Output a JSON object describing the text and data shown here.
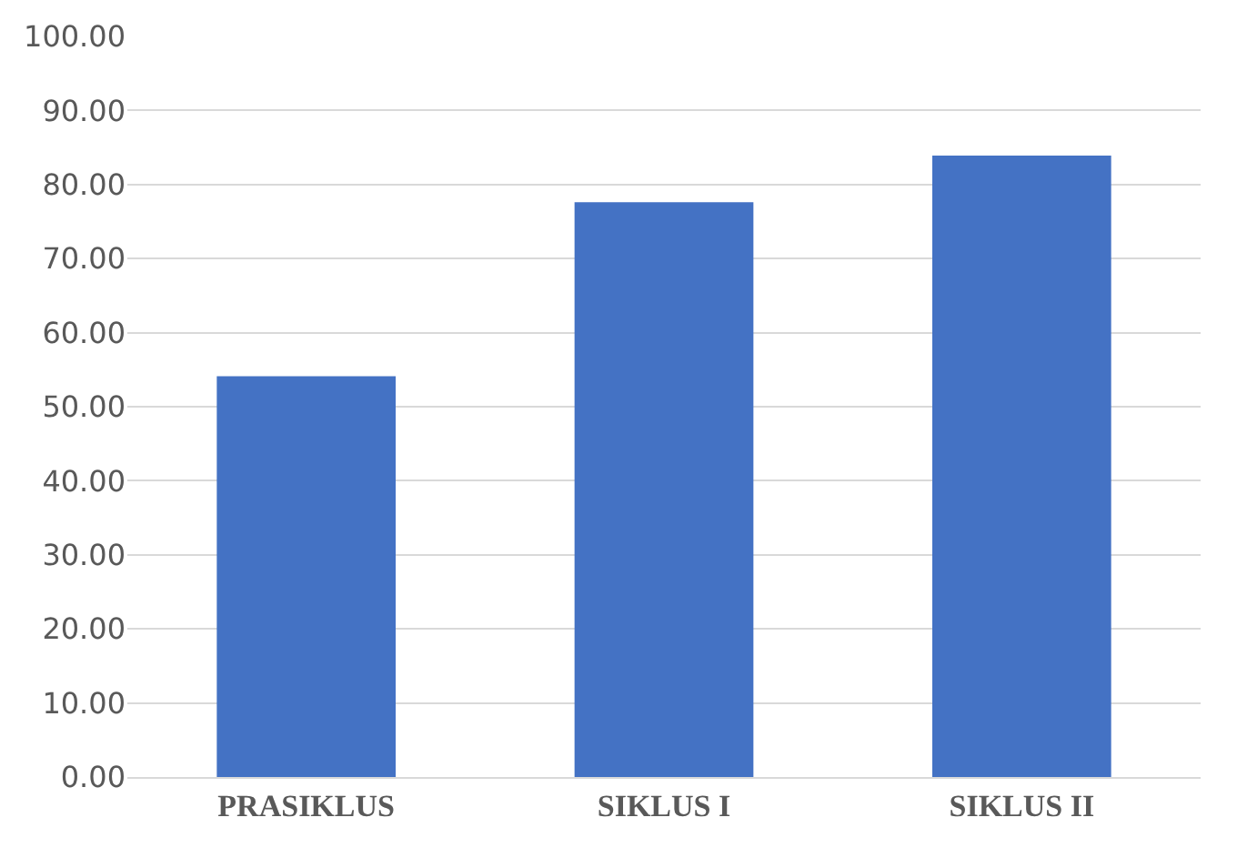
{
  "chart_data": {
    "type": "bar",
    "categories": [
      "PRASIKLUS",
      "SIKLUS I",
      "SIKLUS II"
    ],
    "values": [
      54.1,
      77.6,
      83.9
    ],
    "color": "#4472c4",
    "ylim": [
      0,
      100
    ],
    "yticks": [
      {
        "value": 0,
        "label": "0.00"
      },
      {
        "value": 10,
        "label": "10.00"
      },
      {
        "value": 20,
        "label": "20.00"
      },
      {
        "value": 30,
        "label": "30.00"
      },
      {
        "value": 40,
        "label": "40.00"
      },
      {
        "value": 50,
        "label": "50.00"
      },
      {
        "value": 60,
        "label": "60.00"
      },
      {
        "value": 70,
        "label": "70.00"
      },
      {
        "value": 80,
        "label": "80.00"
      },
      {
        "value": 90,
        "label": "90.00"
      },
      {
        "value": 100,
        "label": "100.00"
      }
    ],
    "grid": "y"
  }
}
